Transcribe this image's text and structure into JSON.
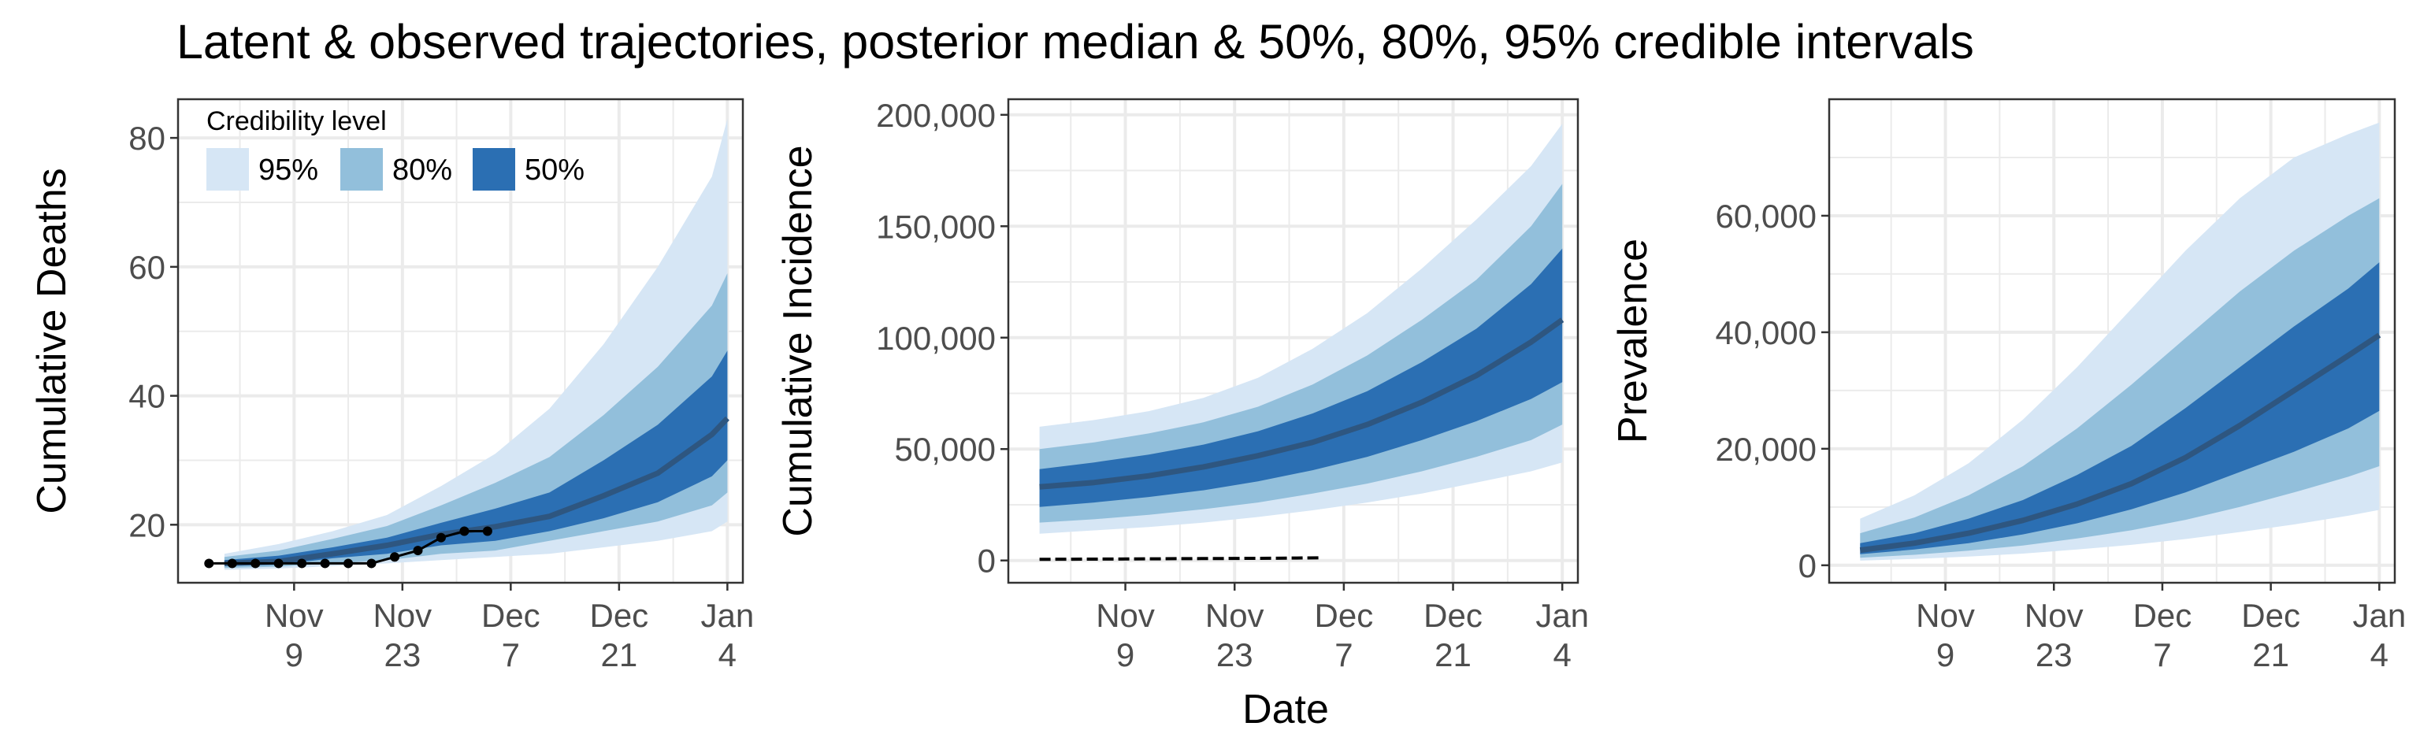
{
  "title": "Latent & observed trajectories, posterior median & 50%, 80%, 95% credible intervals",
  "x_axis_title": "Date",
  "legend": {
    "title": "Credibility level",
    "items": [
      {
        "label": "95%",
        "color": "#d6e6f5"
      },
      {
        "label": "80%",
        "color": "#92bfdb"
      },
      {
        "label": "50%",
        "color": "#2b6fb3"
      }
    ]
  },
  "colors": {
    "median": "#2e5680",
    "observed": "#000000",
    "grid": "#ebebeb",
    "panel_border": "#333333"
  },
  "chart_data": [
    {
      "type": "area",
      "ylabel": "Cumulative Deaths",
      "xlim": [
        "2020-10-25",
        "2021-01-06"
      ],
      "ylim": [
        11,
        86
      ],
      "yticks": [
        20,
        40,
        60,
        80
      ],
      "ytick_labels": [
        "20",
        "40",
        "60",
        "80"
      ],
      "xticks": [
        "2020-11-09",
        "2020-11-23",
        "2020-12-07",
        "2020-12-21",
        "2021-01-04"
      ],
      "xtick_labels": [
        [
          "Nov",
          "9"
        ],
        [
          "Nov",
          "23"
        ],
        [
          "Dec",
          "7"
        ],
        [
          "Dec",
          "21"
        ],
        [
          "Jan",
          "4"
        ]
      ],
      "grid": true,
      "x": [
        "2020-10-31",
        "2020-11-07",
        "2020-11-14",
        "2020-11-21",
        "2020-11-28",
        "2020-12-05",
        "2020-12-12",
        "2020-12-19",
        "2020-12-26",
        "2021-01-02",
        "2021-01-04"
      ],
      "median": [
        14,
        14.3,
        15.5,
        16.8,
        18.5,
        19.7,
        21.3,
        24.5,
        28,
        34,
        36.5
      ],
      "bands": [
        {
          "level": "95%",
          "lower": [
            13,
            13.2,
            13.6,
            14,
            14.5,
            15,
            15.5,
            16.5,
            17.5,
            19,
            20.5
          ],
          "upper": [
            15.5,
            17,
            19,
            21.5,
            26,
            31,
            38,
            48,
            60,
            74,
            83
          ]
        },
        {
          "level": "80%",
          "lower": [
            13.3,
            13.5,
            14,
            14.5,
            15.5,
            16,
            17.5,
            19,
            20.5,
            23,
            25
          ],
          "upper": [
            15,
            16,
            17.8,
            19.8,
            23,
            26.5,
            30.5,
            37,
            44.5,
            54,
            59
          ]
        },
        {
          "level": "50%",
          "lower": [
            13.6,
            13.8,
            14.8,
            15.5,
            16.8,
            17.5,
            19,
            21,
            23.5,
            27.5,
            30
          ],
          "upper": [
            14.5,
            15.2,
            16.5,
            18,
            20.3,
            22.5,
            25,
            30,
            35.5,
            43,
            47
          ]
        }
      ],
      "observed": {
        "x": [
          "2020-10-29",
          "2020-11-01",
          "2020-11-04",
          "2020-11-07",
          "2020-11-10",
          "2020-11-13",
          "2020-11-16",
          "2020-11-19",
          "2020-11-22",
          "2020-11-25",
          "2020-11-28",
          "2020-12-01",
          "2020-12-04"
        ],
        "y": [
          14,
          14,
          14,
          14,
          14,
          14,
          14,
          14,
          15,
          16,
          18,
          19,
          19
        ],
        "style": "points-line"
      }
    },
    {
      "type": "area",
      "ylabel": "Cumulative Incidence",
      "xlim": [
        "2020-10-25",
        "2021-01-06"
      ],
      "ylim": [
        -10000,
        207000
      ],
      "yticks": [
        0,
        50000,
        100000,
        150000,
        200000
      ],
      "ytick_labels": [
        "0",
        "50,000",
        "100,000",
        "150,000",
        "200,000"
      ],
      "xticks": [
        "2020-11-09",
        "2020-11-23",
        "2020-12-07",
        "2020-12-21",
        "2021-01-04"
      ],
      "xtick_labels": [
        [
          "Nov",
          "9"
        ],
        [
          "Nov",
          "23"
        ],
        [
          "Dec",
          "7"
        ],
        [
          "Dec",
          "21"
        ],
        [
          "Jan",
          "4"
        ]
      ],
      "grid": true,
      "x": [
        "2020-10-29",
        "2020-11-05",
        "2020-11-12",
        "2020-11-19",
        "2020-11-26",
        "2020-12-03",
        "2020-12-10",
        "2020-12-17",
        "2020-12-24",
        "2020-12-31",
        "2021-01-04"
      ],
      "median": [
        33000,
        35000,
        38000,
        42000,
        47000,
        53000,
        61000,
        71000,
        83000,
        98000,
        108000
      ],
      "bands": [
        {
          "level": "95%",
          "lower": [
            12000,
            13500,
            15000,
            17000,
            19500,
            22500,
            26000,
            30000,
            35000,
            40000,
            44000
          ],
          "upper": [
            60000,
            63000,
            67000,
            73000,
            82000,
            95000,
            111000,
            131000,
            153000,
            177000,
            196000
          ]
        },
        {
          "level": "80%",
          "lower": [
            17000,
            18500,
            20500,
            23000,
            26000,
            30000,
            34500,
            40000,
            46500,
            54000,
            61000
          ],
          "upper": [
            50000,
            53000,
            57000,
            62000,
            69000,
            79000,
            92000,
            108000,
            126000,
            150000,
            169000
          ]
        },
        {
          "level": "50%",
          "lower": [
            24000,
            26000,
            28500,
            31500,
            35500,
            40500,
            46500,
            54000,
            62500,
            72500,
            80000
          ],
          "upper": [
            41000,
            44000,
            47500,
            52000,
            58000,
            66000,
            76000,
            89000,
            104000,
            124000,
            140000
          ]
        }
      ],
      "observed": {
        "x": [
          "2020-10-29",
          "2020-11-01",
          "2020-11-04",
          "2020-11-07",
          "2020-11-10",
          "2020-11-13",
          "2020-11-16",
          "2020-11-19",
          "2020-11-22",
          "2020-11-25",
          "2020-11-28",
          "2020-12-01",
          "2020-12-04"
        ],
        "y": [
          500,
          550,
          600,
          650,
          700,
          750,
          800,
          850,
          900,
          950,
          1000,
          1100,
          1200
        ],
        "style": "dashed"
      }
    },
    {
      "type": "area",
      "ylabel": "Prevalence",
      "xlim": [
        "2020-10-25",
        "2021-01-06"
      ],
      "ylim": [
        -3000,
        80000
      ],
      "yticks": [
        0,
        20000,
        40000,
        60000
      ],
      "ytick_labels": [
        "0",
        "20,000",
        "40,000",
        "60,000"
      ],
      "xticks": [
        "2020-11-09",
        "2020-11-23",
        "2020-12-07",
        "2020-12-21",
        "2021-01-04"
      ],
      "xtick_labels": [
        [
          "Nov",
          "9"
        ],
        [
          "Nov",
          "23"
        ],
        [
          "Dec",
          "7"
        ],
        [
          "Dec",
          "21"
        ],
        [
          "Jan",
          "4"
        ]
      ],
      "grid": true,
      "x": [
        "2020-10-29",
        "2020-11-05",
        "2020-11-12",
        "2020-11-19",
        "2020-11-26",
        "2020-12-03",
        "2020-12-10",
        "2020-12-17",
        "2020-12-24",
        "2020-12-31",
        "2021-01-04"
      ],
      "median": [
        2600,
        3800,
        5500,
        7700,
        10500,
        14000,
        18500,
        24000,
        30000,
        36000,
        39500
      ],
      "bands": [
        {
          "level": "95%",
          "lower": [
            800,
            1100,
            1500,
            2000,
            2700,
            3500,
            4500,
            5700,
            7000,
            8500,
            9500
          ],
          "upper": [
            8000,
            12000,
            17500,
            25000,
            34000,
            44000,
            54000,
            63000,
            70000,
            74000,
            76000
          ]
        },
        {
          "level": "80%",
          "lower": [
            1300,
            1800,
            2500,
            3400,
            4600,
            6000,
            7800,
            10000,
            12500,
            15200,
            17000
          ],
          "upper": [
            5500,
            8200,
            12000,
            17000,
            23500,
            31000,
            39000,
            47000,
            54000,
            60000,
            63000
          ]
        },
        {
          "level": "50%",
          "lower": [
            1900,
            2700,
            3800,
            5300,
            7200,
            9600,
            12500,
            16000,
            19500,
            23500,
            26500
          ],
          "upper": [
            3800,
            5500,
            8000,
            11200,
            15500,
            20500,
            27000,
            34000,
            41000,
            47500,
            52000
          ]
        }
      ],
      "observed": null
    }
  ]
}
